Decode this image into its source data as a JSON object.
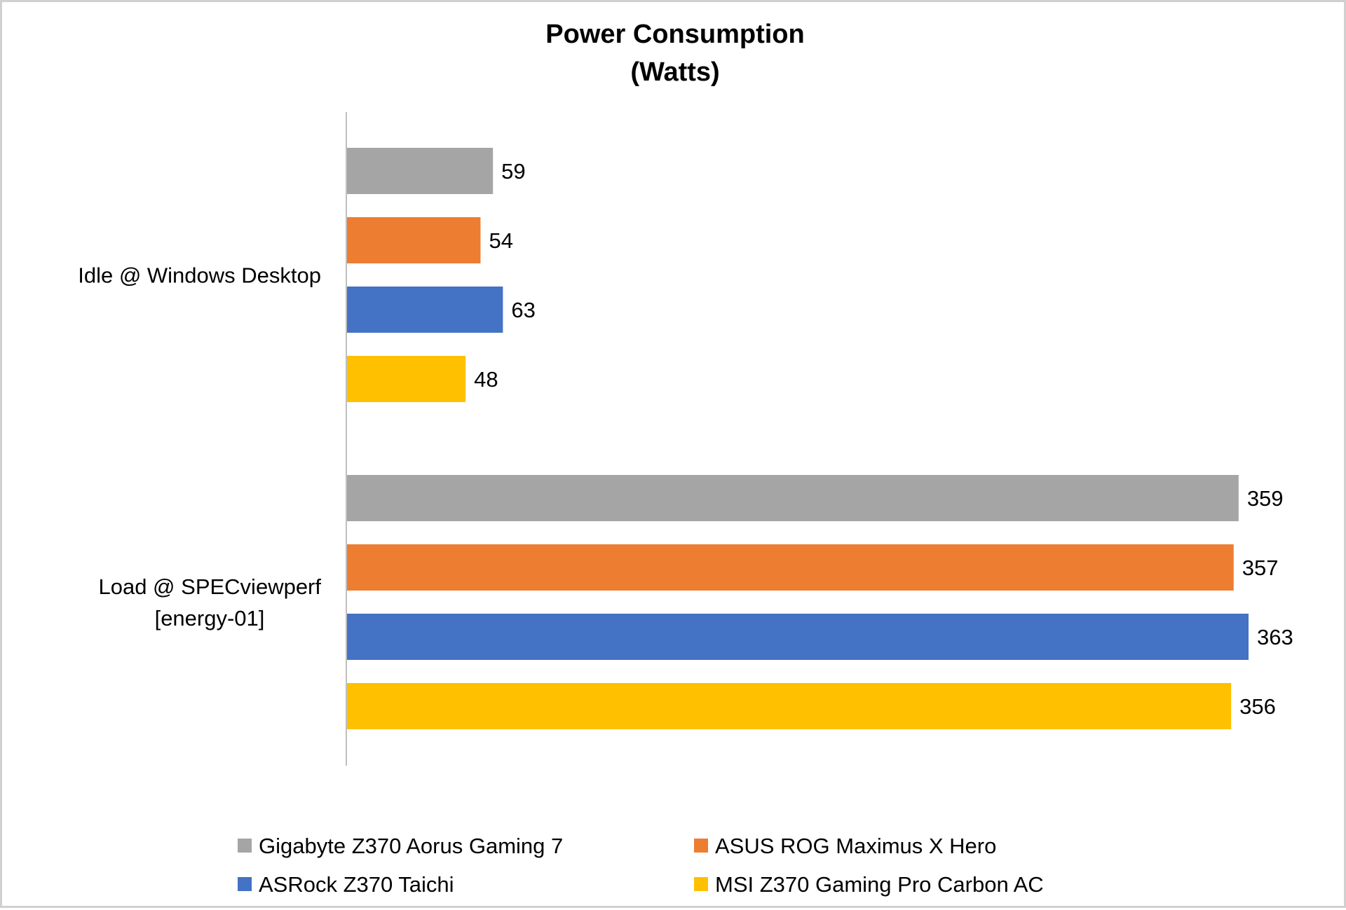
{
  "chart_data": {
    "type": "bar",
    "orientation": "horizontal",
    "title": "Power Consumption",
    "subtitle": "(Watts)",
    "categories": [
      {
        "lines": [
          "Idle @ Windows Desktop"
        ]
      },
      {
        "lines": [
          "Load @ SPECviewperf",
          "[energy-01]"
        ]
      }
    ],
    "series": [
      {
        "name": "Gigabyte Z370 Aorus Gaming 7",
        "color": "#a5a5a5",
        "values": [
          59,
          359
        ]
      },
      {
        "name": "ASUS ROG Maximus X Hero",
        "color": "#ed7d31",
        "values": [
          54,
          357
        ]
      },
      {
        "name": "ASRock Z370 Taichi",
        "color": "#4472c4",
        "values": [
          63,
          363
        ]
      },
      {
        "name": "MSI Z370 Gaming Pro Carbon AC",
        "color": "#ffc000",
        "values": [
          48,
          356
        ]
      }
    ],
    "xlim": [
      0,
      363
    ],
    "grid": false,
    "legend_position": "bottom",
    "data_labels": true
  }
}
